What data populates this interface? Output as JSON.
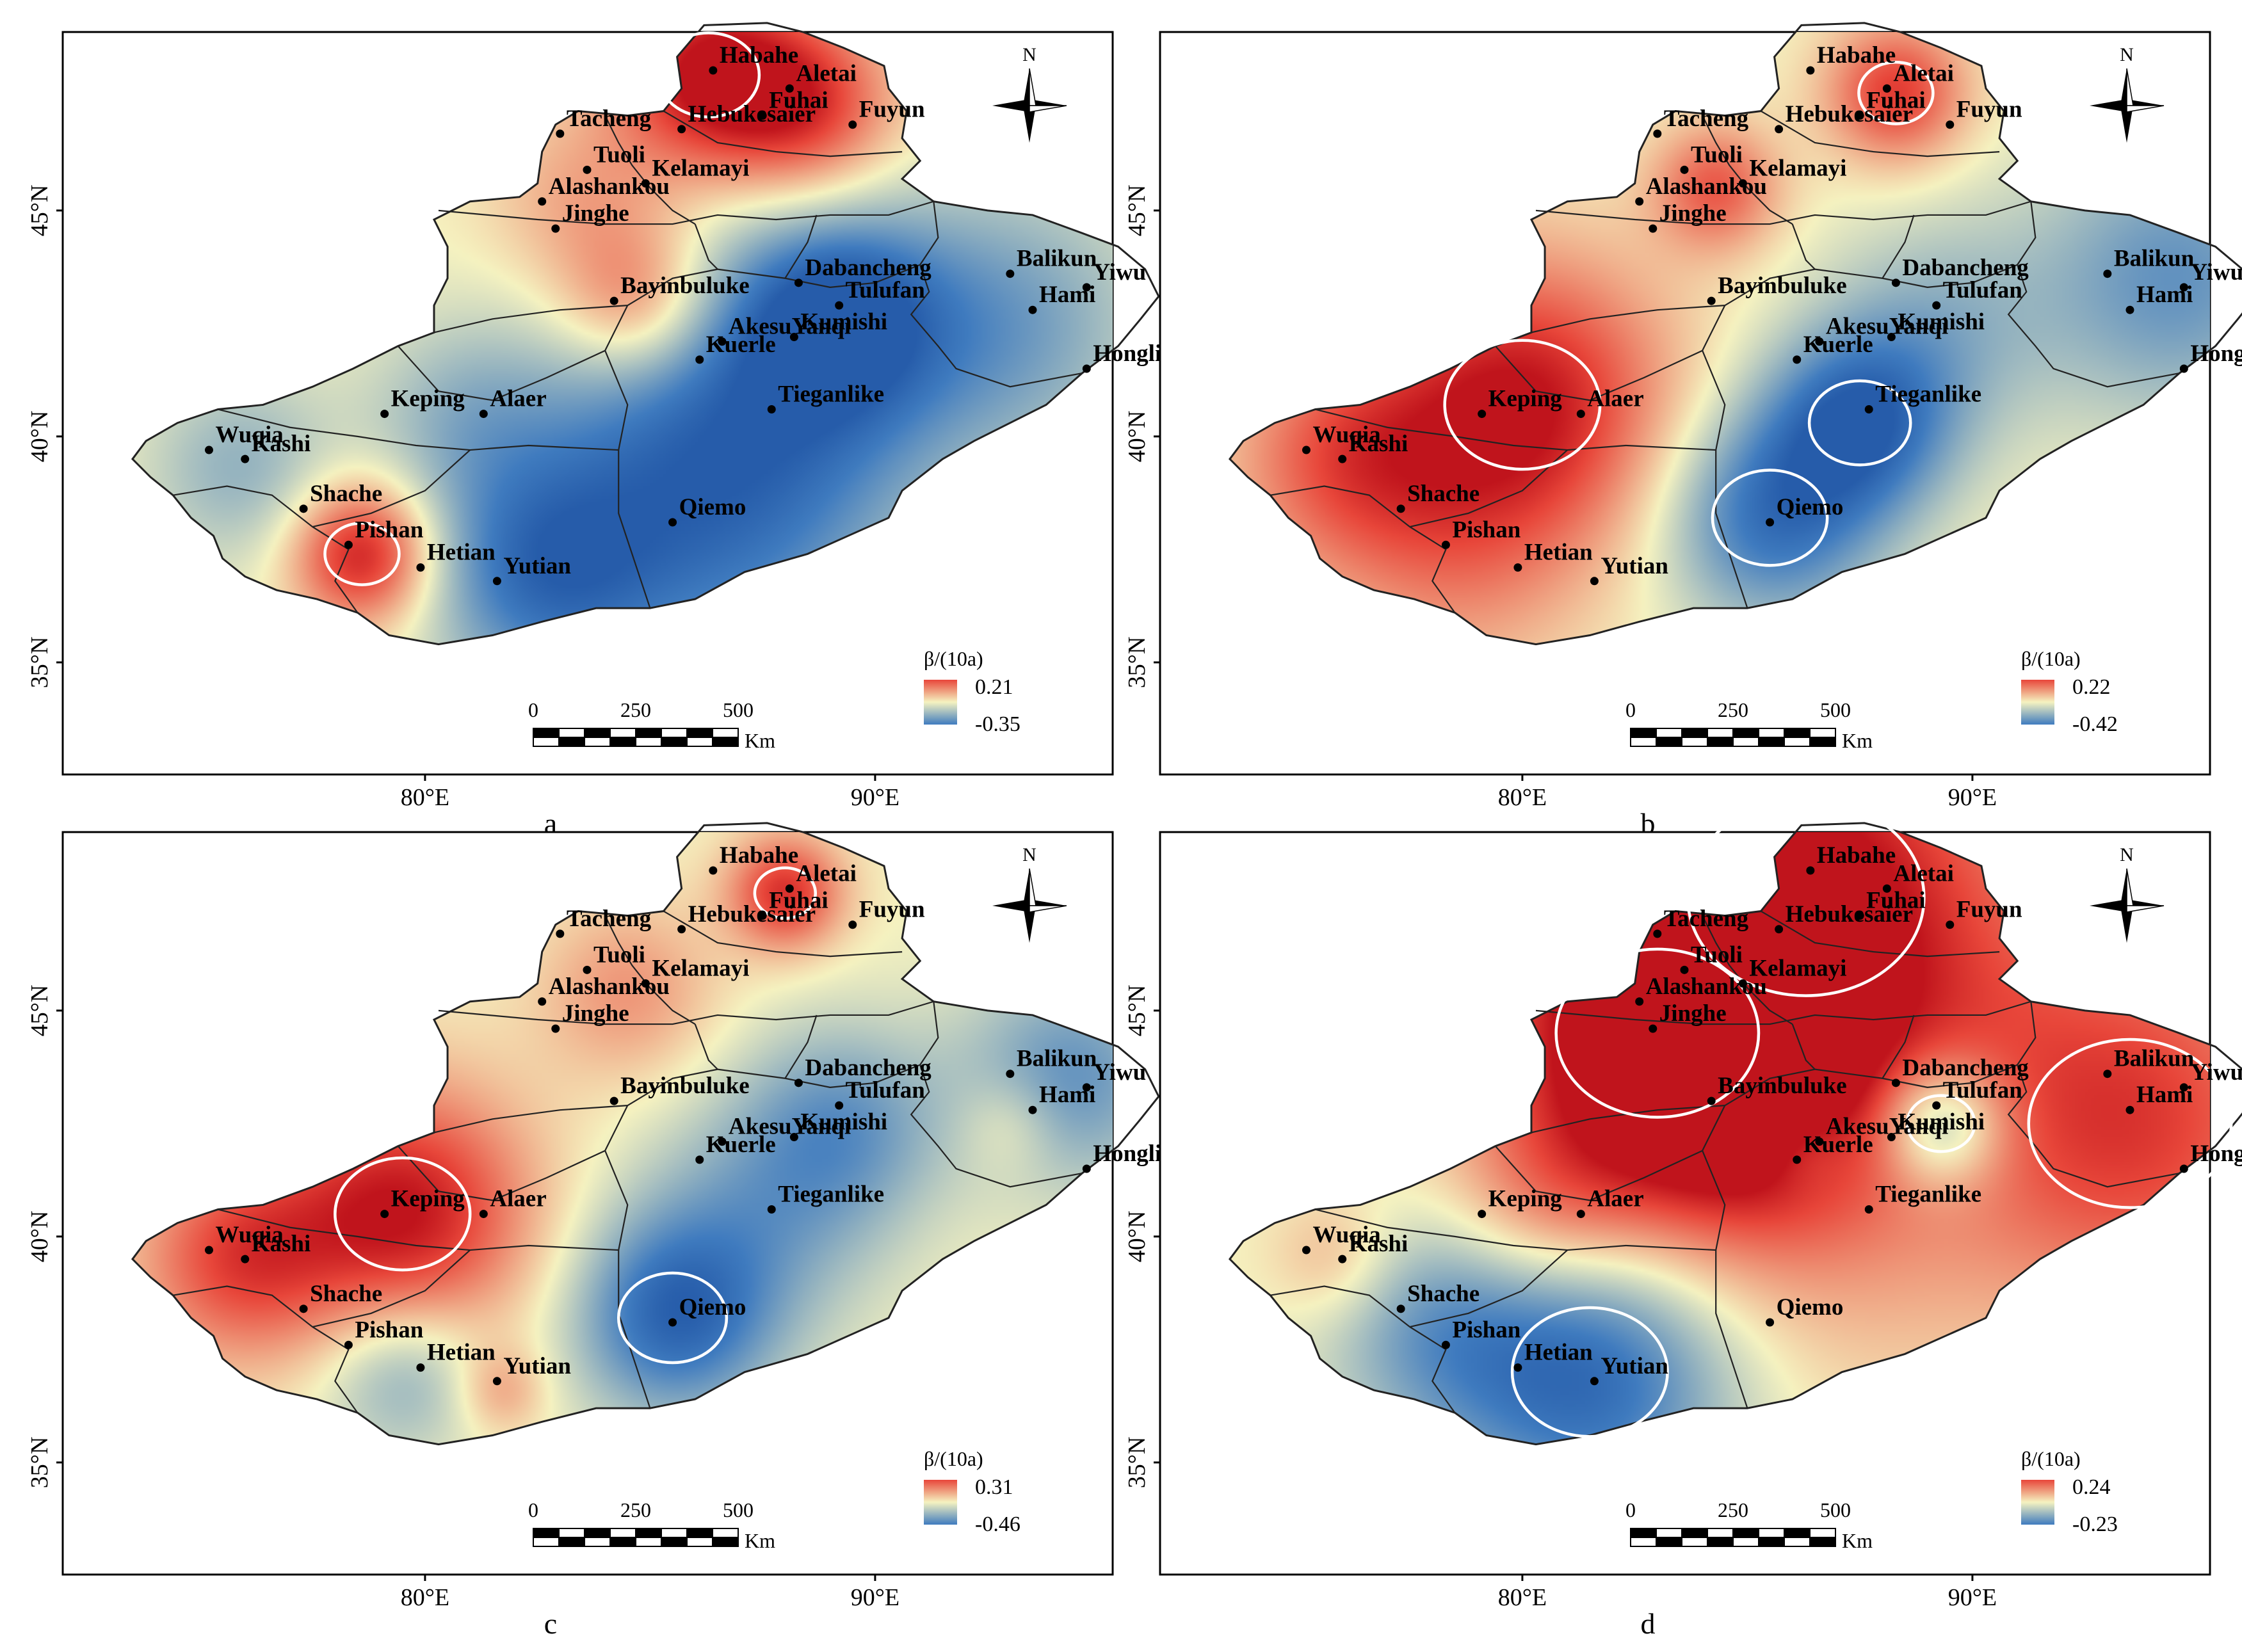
{
  "figure": {
    "panels": [
      {
        "letter": "a",
        "legend": {
          "title": "β/(10a)",
          "max": "0.21",
          "min": "-0.35"
        },
        "hotspots": [
          {
            "lon": 86.3,
            "lat": 48.0,
            "v": 1.0,
            "r": 1.5
          },
          {
            "lon": 88.5,
            "lat": 47.3,
            "v": 0.75,
            "r": 1.4
          },
          {
            "lon": 78.6,
            "lat": 37.4,
            "v": 1.0,
            "r": 1.1
          },
          {
            "lon": 84.7,
            "lat": 43.0,
            "v": 0.6,
            "r": 1.2
          },
          {
            "lon": 83.5,
            "lat": 45.2,
            "v": 0.35,
            "r": 1.5
          },
          {
            "lon": 89.2,
            "lat": 42.7,
            "v": -0.75,
            "r": 1.6
          },
          {
            "lon": 87.5,
            "lat": 40.5,
            "v": -0.6,
            "r": 2.8
          },
          {
            "lon": 85.5,
            "lat": 38.0,
            "v": -0.55,
            "r": 3.0
          },
          {
            "lon": 82.5,
            "lat": 37.0,
            "v": -0.6,
            "r": 1.8
          },
          {
            "lon": 93.0,
            "lat": 42.5,
            "v": -0.5,
            "r": 2.2
          },
          {
            "lon": 75.9,
            "lat": 39.3,
            "v": -0.4,
            "r": 1.5
          },
          {
            "lon": 80.8,
            "lat": 40.5,
            "v": -0.3,
            "r": 1.5
          }
        ]
      },
      {
        "letter": "b",
        "legend": {
          "title": "β/(10a)",
          "max": "0.22",
          "min": "-0.42"
        },
        "hotspots": [
          {
            "lon": 80.0,
            "lat": 40.7,
            "v": 1.0,
            "r": 2.3
          },
          {
            "lon": 76.0,
            "lat": 39.5,
            "v": 0.6,
            "r": 1.8
          },
          {
            "lon": 88.3,
            "lat": 47.6,
            "v": 0.8,
            "r": 1.1
          },
          {
            "lon": 84.3,
            "lat": 45.5,
            "v": 0.65,
            "r": 1.0
          },
          {
            "lon": 87.5,
            "lat": 40.3,
            "v": -0.85,
            "r": 1.5
          },
          {
            "lon": 85.5,
            "lat": 38.2,
            "v": -0.8,
            "r": 1.7
          },
          {
            "lon": 94.5,
            "lat": 43.5,
            "v": -0.6,
            "r": 2.2
          },
          {
            "lon": 89.3,
            "lat": 42.5,
            "v": -0.35,
            "r": 1.8
          },
          {
            "lon": 78.5,
            "lat": 37.0,
            "v": 0.3,
            "r": 2.0
          }
        ]
      },
      {
        "letter": "c",
        "legend": {
          "title": "β/(10a)",
          "max": "0.31",
          "min": "-0.46"
        },
        "hotspots": [
          {
            "lon": 79.5,
            "lat": 40.5,
            "v": 1.0,
            "r": 2.0
          },
          {
            "lon": 75.8,
            "lat": 39.5,
            "v": 0.7,
            "r": 1.6
          },
          {
            "lon": 88.0,
            "lat": 47.6,
            "v": 0.85,
            "r": 0.9
          },
          {
            "lon": 84.5,
            "lat": 45.4,
            "v": 0.4,
            "r": 1.4
          },
          {
            "lon": 85.5,
            "lat": 38.2,
            "v": -0.85,
            "r": 1.6
          },
          {
            "lon": 94.3,
            "lat": 43.5,
            "v": -0.6,
            "r": 1.7
          },
          {
            "lon": 89.3,
            "lat": 42.5,
            "v": -0.5,
            "r": 1.6
          },
          {
            "lon": 87.5,
            "lat": 40.5,
            "v": -0.4,
            "r": 2.0
          },
          {
            "lon": 79.5,
            "lat": 37.0,
            "v": -0.5,
            "r": 1.3
          },
          {
            "lon": 81.7,
            "lat": 36.6,
            "v": 0.35,
            "r": 0.7
          },
          {
            "lon": 93.0,
            "lat": 42.5,
            "v": 0.25,
            "r": 0.8
          }
        ]
      },
      {
        "letter": "d",
        "legend": {
          "title": "β/(10a)",
          "max": "0.24",
          "min": "-0.23"
        },
        "hotspots": [
          {
            "lon": 86.3,
            "lat": 47.5,
            "v": 1.0,
            "r": 3.5
          },
          {
            "lon": 83.0,
            "lat": 44.5,
            "v": 0.85,
            "r": 3.0
          },
          {
            "lon": 93.5,
            "lat": 42.5,
            "v": 0.8,
            "r": 3.0
          },
          {
            "lon": 84.5,
            "lat": 43.0,
            "v": 0.7,
            "r": 2.5
          },
          {
            "lon": 80.5,
            "lat": 40.5,
            "v": 0.35,
            "r": 1.5
          },
          {
            "lon": 75.8,
            "lat": 39.5,
            "v": 0.3,
            "r": 1.0
          },
          {
            "lon": 89.3,
            "lat": 42.5,
            "v": -0.85,
            "r": 1.0
          },
          {
            "lon": 81.5,
            "lat": 37.0,
            "v": -0.9,
            "r": 2.3
          },
          {
            "lon": 78.0,
            "lat": 38.0,
            "v": -0.45,
            "r": 1.8
          },
          {
            "lon": 86.3,
            "lat": 42.0,
            "v": -0.25,
            "r": 0.7
          },
          {
            "lon": 87.5,
            "lat": 39.0,
            "v": 0.15,
            "r": 2.5
          }
        ]
      }
    ],
    "lat_labels": [
      "35°N",
      "40°N",
      "45°N"
    ],
    "lon_labels": [
      "80°E",
      "90°E"
    ],
    "north_label": "N",
    "scale_bar": {
      "ticks": [
        "0",
        "250",
        "500"
      ],
      "unit": "Km"
    },
    "colors": {
      "high": "#e8463a",
      "mid": "#f5f2c0",
      "low": "#3f7bbf"
    },
    "cities": [
      {
        "name": "Habahe",
        "lon": 86.4,
        "lat": 48.1
      },
      {
        "name": "Fuhai",
        "lon": 87.5,
        "lat": 47.1
      },
      {
        "name": "Aletai",
        "lon": 88.1,
        "lat": 47.7
      },
      {
        "name": "Fuyun",
        "lon": 89.5,
        "lat": 46.9
      },
      {
        "name": "Tacheng",
        "lon": 83.0,
        "lat": 46.7
      },
      {
        "name": "Hebukesaier",
        "lon": 85.7,
        "lat": 46.8
      },
      {
        "name": "Tuoli",
        "lon": 83.6,
        "lat": 45.9
      },
      {
        "name": "Alashankou",
        "lon": 82.6,
        "lat": 45.2
      },
      {
        "name": "Kelamayi",
        "lon": 84.9,
        "lat": 45.6
      },
      {
        "name": "Jinghe",
        "lon": 82.9,
        "lat": 44.6
      },
      {
        "name": "Bayinbuluke",
        "lon": 84.2,
        "lat": 43.0
      },
      {
        "name": "Dabancheng",
        "lon": 88.3,
        "lat": 43.4
      },
      {
        "name": "Balikun",
        "lon": 93.0,
        "lat": 43.6
      },
      {
        "name": "Yiwu",
        "lon": 94.7,
        "lat": 43.3
      },
      {
        "name": "Tulufan",
        "lon": 89.2,
        "lat": 42.9
      },
      {
        "name": "Hami",
        "lon": 93.5,
        "lat": 42.8
      },
      {
        "name": "AkesuYanqi",
        "lon": 86.6,
        "lat": 42.1
      },
      {
        "name": "Kumishi",
        "lon": 88.2,
        "lat": 42.2
      },
      {
        "name": "Kuerle",
        "lon": 86.1,
        "lat": 41.7
      },
      {
        "name": "Hongliuhe",
        "lon": 94.7,
        "lat": 41.5
      },
      {
        "name": "Keping",
        "lon": 79.1,
        "lat": 40.5
      },
      {
        "name": "Alaer",
        "lon": 81.3,
        "lat": 40.5
      },
      {
        "name": "Tieganlike",
        "lon": 87.7,
        "lat": 40.6
      },
      {
        "name": "Wuqia",
        "lon": 75.2,
        "lat": 39.7
      },
      {
        "name": "Kashi",
        "lon": 76.0,
        "lat": 39.5
      },
      {
        "name": "Shache",
        "lon": 77.3,
        "lat": 38.4
      },
      {
        "name": "Pishan",
        "lon": 78.3,
        "lat": 37.6
      },
      {
        "name": "Qiemo",
        "lon": 85.5,
        "lat": 38.1
      },
      {
        "name": "Hetian",
        "lon": 79.9,
        "lat": 37.1
      },
      {
        "name": "Yutian",
        "lon": 81.6,
        "lat": 36.8
      }
    ]
  }
}
